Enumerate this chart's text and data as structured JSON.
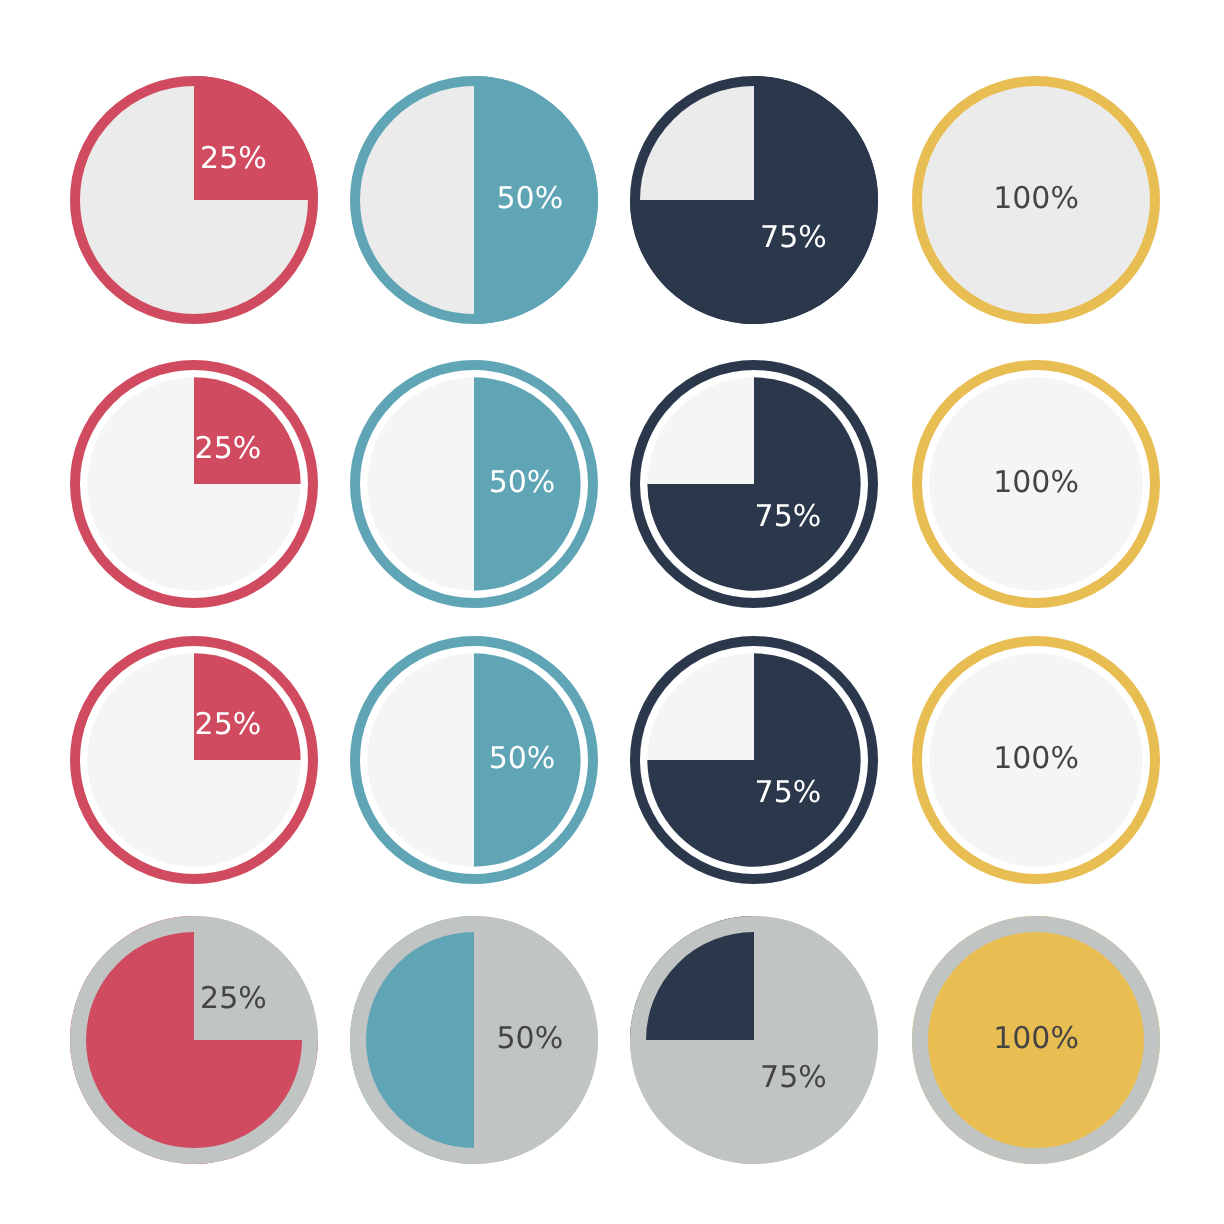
{
  "chart_data": [
    {
      "type": "pie",
      "categories": [
        null,
        null
      ],
      "values": [
        25,
        75
      ],
      "colors": [
        "#d04a60",
        "#ebebeb"
      ],
      "value_labels": [
        "25%",
        null
      ]
    },
    {
      "type": "pie",
      "categories": [
        null,
        null
      ],
      "values": [
        50,
        50
      ],
      "colors": [
        "#5fa5b5",
        "#ebebeb"
      ],
      "value_labels": [
        "50%",
        null
      ]
    },
    {
      "type": "pie",
      "categories": [
        null,
        null
      ],
      "values": [
        75,
        25
      ],
      "colors": [
        "#2b374b",
        "#ebebeb"
      ],
      "value_labels": [
        "75%",
        null
      ]
    },
    {
      "type": "pie",
      "categories": [
        null
      ],
      "values": [
        100
      ],
      "colors": [
        "#ebebeb"
      ],
      "value_labels": [
        "100%"
      ]
    },
    {
      "type": "pie",
      "categories": [
        null,
        null
      ],
      "values": [
        25,
        75
      ],
      "colors": [
        "#d04a60",
        "#f5f5f5"
      ],
      "value_labels": [
        "25%",
        null
      ]
    },
    {
      "type": "pie",
      "categories": [
        null,
        null
      ],
      "values": [
        50,
        50
      ],
      "colors": [
        "#5fa5b5",
        "#f5f5f5"
      ],
      "value_labels": [
        "50%",
        null
      ]
    },
    {
      "type": "pie",
      "categories": [
        null,
        null
      ],
      "values": [
        75,
        25
      ],
      "colors": [
        "#2b374b",
        "#f5f5f5"
      ],
      "value_labels": [
        "75%",
        null
      ]
    },
    {
      "type": "pie",
      "categories": [
        null
      ],
      "values": [
        100
      ],
      "colors": [
        "#f5f5f5"
      ],
      "value_labels": [
        "100%"
      ]
    },
    {
      "type": "pie",
      "categories": [
        null,
        null
      ],
      "values": [
        25,
        75
      ],
      "colors": [
        "#d04a60",
        "#f5f5f5"
      ],
      "value_labels": [
        "25%",
        null
      ]
    },
    {
      "type": "pie",
      "categories": [
        null,
        null
      ],
      "values": [
        50,
        50
      ],
      "colors": [
        "#5fa5b5",
        "#f5f5f5"
      ],
      "value_labels": [
        "50%",
        null
      ]
    },
    {
      "type": "pie",
      "categories": [
        null,
        null
      ],
      "values": [
        75,
        25
      ],
      "colors": [
        "#2b374b",
        "#f5f5f5"
      ],
      "value_labels": [
        "75%",
        null
      ]
    },
    {
      "type": "pie",
      "categories": [
        null
      ],
      "values": [
        100
      ],
      "colors": [
        "#f5f5f5"
      ],
      "value_labels": [
        "100%"
      ]
    },
    {
      "type": "pie",
      "categories": [
        null,
        null
      ],
      "values": [
        25,
        75
      ],
      "colors": [
        "#c0c4c3",
        "#d04a60"
      ],
      "value_labels": [
        "25%",
        null
      ]
    },
    {
      "type": "pie",
      "categories": [
        null,
        null
      ],
      "values": [
        50,
        50
      ],
      "colors": [
        "#c0c4c3",
        "#5fa5b5"
      ],
      "value_labels": [
        "50%",
        null
      ]
    },
    {
      "type": "pie",
      "categories": [
        null,
        null
      ],
      "values": [
        75,
        25
      ],
      "colors": [
        "#c0c4c3",
        "#2b374b"
      ],
      "value_labels": [
        "75%",
        null
      ]
    },
    {
      "type": "pie",
      "categories": [
        null
      ],
      "values": [
        100
      ],
      "colors": [
        "#e8bd52"
      ],
      "value_labels": [
        "100%"
      ]
    }
  ]
}
